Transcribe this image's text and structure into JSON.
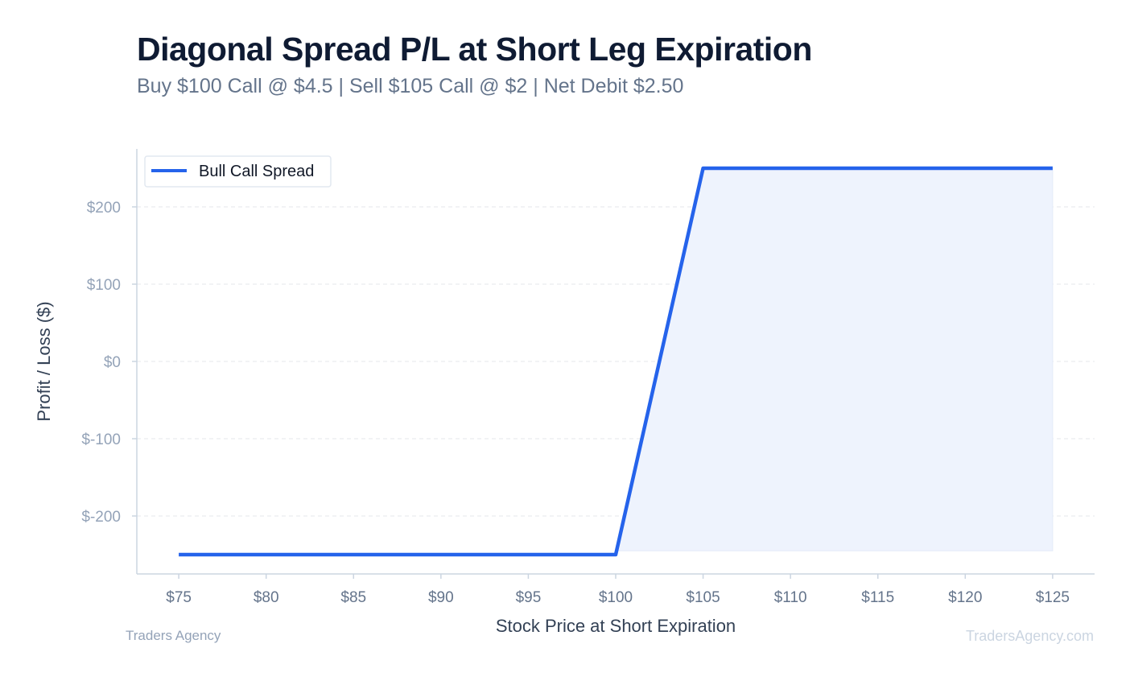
{
  "header": {
    "title": "Diagonal Spread P/L at Short Leg Expiration",
    "subtitle": "Buy $100 Call @ $4.5 | Sell $105 Call @ $2 | Net Debit $2.50"
  },
  "footer": {
    "left": "Traders Agency",
    "right": "TradersAgency.com"
  },
  "colors": {
    "line": "#2563eb",
    "fill": "#eef3fd",
    "grid": "#e5e7eb",
    "axis": "#cbd5e1"
  },
  "chart_data": {
    "type": "line",
    "xlabel": "Stock Price at Short Expiration",
    "ylabel": "Profit / Loss ($)",
    "xlim": [
      72.6,
      127.4
    ],
    "ylim": [
      -275,
      275
    ],
    "x_ticks": [
      75,
      80,
      85,
      90,
      95,
      100,
      105,
      110,
      115,
      120,
      125
    ],
    "x_tick_labels": [
      "$75",
      "$80",
      "$85",
      "$90",
      "$95",
      "$100",
      "$105",
      "$110",
      "$115",
      "$120",
      "$125"
    ],
    "y_ticks": [
      200,
      100,
      0,
      -100,
      -200
    ],
    "y_tick_labels": [
      "$200",
      "$100",
      "$0",
      "$-100",
      "$-200"
    ],
    "grid": true,
    "legend_position": "top-left",
    "series": [
      {
        "name": "Bull Call Spread",
        "x": [
          75,
          100,
          105,
          125
        ],
        "y": [
          -250,
          -250,
          250,
          250
        ]
      }
    ],
    "shaded_region": {
      "x": [
        100,
        105,
        125
      ],
      "y_low": -245,
      "y_high": [
        -250,
        250,
        250
      ]
    }
  }
}
